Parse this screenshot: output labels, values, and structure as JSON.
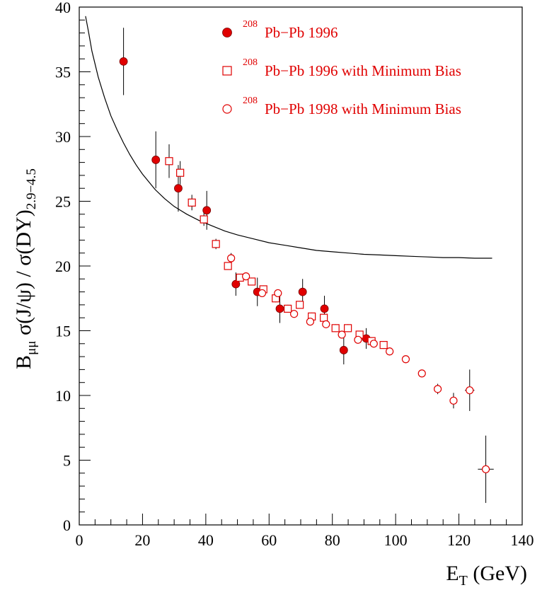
{
  "chart_data": {
    "type": "scatter",
    "xlabel": "E",
    "xlabel_sub": "T",
    "xlabel_unit": " (GeV)",
    "ylabel_parts": {
      "B": "B",
      "mumu": "μμ",
      "body": " σ(J/ψ) / σ(DY)",
      "range": "2.9−4.5"
    },
    "xlim": [
      0,
      140
    ],
    "ylim": [
      0,
      40
    ],
    "x_ticks": [
      0,
      20,
      40,
      60,
      80,
      100,
      120,
      140
    ],
    "y_ticks": [
      0,
      5,
      10,
      15,
      20,
      25,
      30,
      35,
      40
    ],
    "x_tick_labels": [
      "0",
      "20",
      "40",
      "60",
      "80",
      "100",
      "120",
      "140"
    ],
    "y_tick_labels": [
      "0",
      "5",
      "10",
      "15",
      "20",
      "25",
      "30",
      "35",
      "40"
    ],
    "colors": {
      "points": "#e00000",
      "curve": "#000000",
      "errors": "#000000"
    },
    "legend_position": "top-right",
    "series": [
      {
        "name": "Pb−Pb 1996",
        "superscript": "208",
        "marker": "filled-circle",
        "points": [
          {
            "x": 14,
            "y": 35.8,
            "err": 2.6
          },
          {
            "x": 24.2,
            "y": 28.2,
            "err": 2.2
          },
          {
            "x": 31.3,
            "y": 26.0,
            "err": 1.8
          },
          {
            "x": 40.3,
            "y": 24.3,
            "err": 1.5
          },
          {
            "x": 49.5,
            "y": 18.6,
            "err": 0.9
          },
          {
            "x": 56.3,
            "y": 18.0,
            "err": 1.1
          },
          {
            "x": 63.4,
            "y": 16.7,
            "err": 1.1
          },
          {
            "x": 70.6,
            "y": 18.0,
            "err": 1.0
          },
          {
            "x": 77.5,
            "y": 16.7,
            "err": 1.0
          },
          {
            "x": 83.6,
            "y": 13.5,
            "err": 1.1
          },
          {
            "x": 90.7,
            "y": 14.4,
            "err": 0.8
          }
        ]
      },
      {
        "name": "Pb−Pb 1996 with Minimum Bias",
        "superscript": "208",
        "marker": "open-square",
        "points": [
          {
            "x": 28.4,
            "y": 28.1,
            "err": 1.3
          },
          {
            "x": 31.9,
            "y": 27.2,
            "err": 0.9
          },
          {
            "x": 35.6,
            "y": 24.9,
            "err": 0.6
          },
          {
            "x": 39.4,
            "y": 23.6,
            "err": 0.5
          },
          {
            "x": 43.2,
            "y": 21.7,
            "err": 0.4
          },
          {
            "x": 47.0,
            "y": 20.0,
            "err": 0.3
          },
          {
            "x": 50.8,
            "y": 19.1,
            "err": 0.3
          },
          {
            "x": 54.5,
            "y": 18.8,
            "err": 0.3
          },
          {
            "x": 58.2,
            "y": 18.2,
            "err": 0.3
          },
          {
            "x": 62.1,
            "y": 17.5,
            "err": 0.3
          },
          {
            "x": 65.9,
            "y": 16.7,
            "err": 0.3
          },
          {
            "x": 69.7,
            "y": 17.0,
            "err": 0.3
          },
          {
            "x": 73.5,
            "y": 16.1,
            "err": 0.3
          },
          {
            "x": 77.3,
            "y": 16.0,
            "err": 0.3
          },
          {
            "x": 81.0,
            "y": 15.2,
            "err": 0.3
          },
          {
            "x": 84.9,
            "y": 15.2,
            "err": 0.3
          },
          {
            "x": 88.6,
            "y": 14.7,
            "err": 0.3
          },
          {
            "x": 92.4,
            "y": 14.2,
            "err": 0.3
          },
          {
            "x": 96.2,
            "y": 13.9,
            "err": 0.3
          }
        ]
      },
      {
        "name": "Pb−Pb 1998 with Minimum Bias",
        "superscript": "208",
        "marker": "open-circle",
        "points": [
          {
            "x": 48.0,
            "y": 20.6,
            "err": 0.4
          },
          {
            "x": 52.7,
            "y": 19.2,
            "err": 0.3
          },
          {
            "x": 57.8,
            "y": 17.9,
            "err": 0.3
          },
          {
            "x": 62.8,
            "y": 17.9,
            "err": 0.3
          },
          {
            "x": 67.9,
            "y": 16.3,
            "err": 0.3
          },
          {
            "x": 73.0,
            "y": 15.7,
            "err": 0.3
          },
          {
            "x": 78.0,
            "y": 15.5,
            "err": 0.3
          },
          {
            "x": 83.0,
            "y": 14.7,
            "err": 0.3
          },
          {
            "x": 88.1,
            "y": 14.3,
            "err": 0.3
          },
          {
            "x": 93.1,
            "y": 14.0,
            "err": 0.3
          },
          {
            "x": 98.1,
            "y": 13.4,
            "err": 0.3
          },
          {
            "x": 103.2,
            "y": 12.8,
            "err": 0.3
          },
          {
            "x": 108.3,
            "y": 11.7,
            "err": 0.3
          },
          {
            "x": 113.3,
            "y": 10.5,
            "err": 0.4
          },
          {
            "x": 118.3,
            "y": 9.6,
            "err": 0.6
          },
          {
            "x": 123.4,
            "y": 10.4,
            "err": 1.6,
            "xerr": 1.5
          },
          {
            "x": 128.5,
            "y": 4.3,
            "err": 2.6,
            "xerr": 2.5
          }
        ]
      }
    ],
    "curve": [
      [
        2,
        39.3
      ],
      [
        3,
        38.0
      ],
      [
        4,
        36.6
      ],
      [
        6,
        34.6
      ],
      [
        8,
        33.0
      ],
      [
        10,
        31.6
      ],
      [
        12,
        30.5
      ],
      [
        14,
        29.5
      ],
      [
        16,
        28.6
      ],
      [
        18,
        27.8
      ],
      [
        20,
        27.1
      ],
      [
        22,
        26.5
      ],
      [
        24,
        25.9
      ],
      [
        27,
        25.2
      ],
      [
        30,
        24.6
      ],
      [
        34,
        24.0
      ],
      [
        38,
        23.5
      ],
      [
        42,
        23.1
      ],
      [
        46,
        22.7
      ],
      [
        50,
        22.4
      ],
      [
        55,
        22.1
      ],
      [
        60,
        21.8
      ],
      [
        65,
        21.6
      ],
      [
        70,
        21.4
      ],
      [
        75,
        21.2
      ],
      [
        80,
        21.1
      ],
      [
        85,
        21.0
      ],
      [
        90,
        20.9
      ],
      [
        95,
        20.85
      ],
      [
        100,
        20.8
      ],
      [
        105,
        20.75
      ],
      [
        110,
        20.7
      ],
      [
        115,
        20.65
      ],
      [
        120,
        20.65
      ],
      [
        125,
        20.6
      ],
      [
        130.5,
        20.6
      ]
    ]
  }
}
